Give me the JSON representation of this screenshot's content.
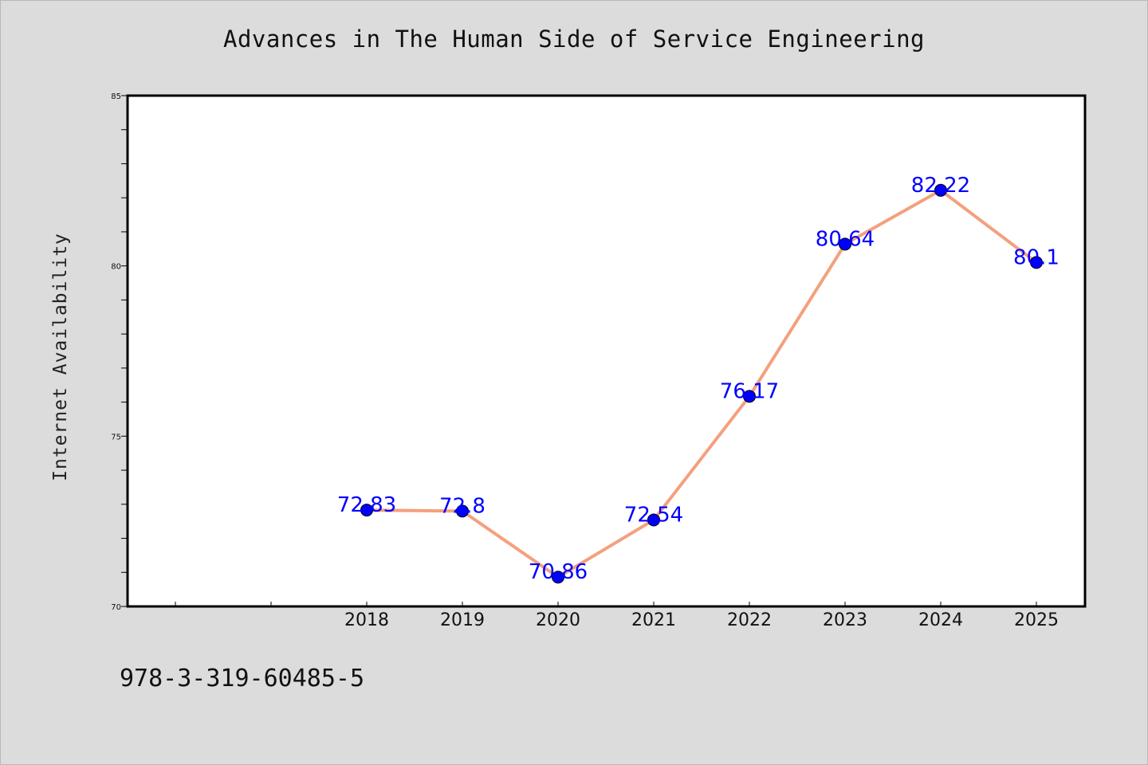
{
  "chart_data": {
    "type": "line",
    "title": "Advances in The Human Side of Service Engineering",
    "xlabel": "",
    "ylabel": "Internet Availability",
    "x": [
      "2018",
      "2019",
      "2020",
      "2021",
      "2022",
      "2023",
      "2024",
      "2025"
    ],
    "values": [
      72.83,
      72.8,
      70.86,
      72.54,
      76.17,
      80.64,
      82.22,
      80.1
    ],
    "data_labels": [
      "72.83",
      "72.8",
      "70.86",
      "72.54",
      "76.17",
      "80.64",
      "82.22",
      "80.1"
    ],
    "ylim": [
      70,
      85
    ],
    "yticks": [
      "70",
      "75",
      "80",
      "85"
    ],
    "grid": false,
    "legend": "none",
    "line_color": "#f4a07e",
    "marker_color": "#0000ff",
    "label_color": "#0000ff"
  },
  "footer": {
    "code": "978-3-319-60485-5"
  }
}
